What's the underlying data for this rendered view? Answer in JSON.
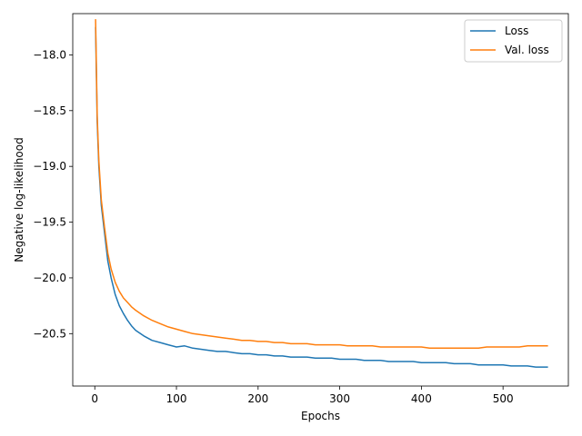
{
  "chart_data": {
    "type": "line",
    "title": "",
    "xlabel": "Epochs",
    "ylabel": "Negative log-likelihood",
    "xlim": [
      -27,
      580
    ],
    "ylim": [
      -20.97,
      -17.63
    ],
    "xticks": [
      0,
      100,
      200,
      300,
      400,
      500
    ],
    "yticks": [
      -18.0,
      -18.5,
      -19.0,
      -19.5,
      -20.0,
      -20.5
    ],
    "ytick_labels": [
      "−18.0",
      "−18.5",
      "−19.0",
      "−19.5",
      "−20.0",
      "−20.5"
    ],
    "grid": false,
    "legend_position": "top-right",
    "series": [
      {
        "name": "Loss",
        "color": "#1f77b4",
        "x": [
          1,
          3,
          5,
          8,
          12,
          16,
          20,
          25,
          30,
          35,
          40,
          45,
          50,
          60,
          70,
          80,
          90,
          100,
          110,
          120,
          130,
          140,
          150,
          160,
          170,
          180,
          190,
          200,
          210,
          220,
          230,
          240,
          250,
          260,
          270,
          280,
          290,
          300,
          310,
          320,
          330,
          340,
          350,
          360,
          370,
          380,
          390,
          400,
          410,
          420,
          430,
          440,
          450,
          460,
          470,
          480,
          490,
          500,
          510,
          520,
          530,
          540,
          550,
          555
        ],
        "values": [
          -17.75,
          -18.6,
          -19.0,
          -19.35,
          -19.6,
          -19.85,
          -20.0,
          -20.15,
          -20.25,
          -20.32,
          -20.38,
          -20.43,
          -20.47,
          -20.52,
          -20.56,
          -20.58,
          -20.6,
          -20.62,
          -20.61,
          -20.63,
          -20.64,
          -20.65,
          -20.66,
          -20.66,
          -20.67,
          -20.68,
          -20.68,
          -20.69,
          -20.69,
          -20.7,
          -20.7,
          -20.71,
          -20.71,
          -20.71,
          -20.72,
          -20.72,
          -20.72,
          -20.73,
          -20.73,
          -20.73,
          -20.74,
          -20.74,
          -20.74,
          -20.75,
          -20.75,
          -20.75,
          -20.75,
          -20.76,
          -20.76,
          -20.76,
          -20.76,
          -20.77,
          -20.77,
          -20.77,
          -20.78,
          -20.78,
          -20.78,
          -20.78,
          -20.79,
          -20.79,
          -20.79,
          -20.8,
          -20.8,
          -20.8
        ]
      },
      {
        "name": "Val. loss",
        "color": "#ff7f0e",
        "x": [
          1,
          3,
          5,
          8,
          12,
          16,
          20,
          25,
          30,
          35,
          40,
          45,
          50,
          60,
          70,
          80,
          90,
          100,
          110,
          120,
          130,
          140,
          150,
          160,
          170,
          180,
          190,
          200,
          210,
          220,
          230,
          240,
          250,
          260,
          270,
          280,
          290,
          300,
          310,
          320,
          330,
          340,
          350,
          360,
          370,
          380,
          390,
          400,
          410,
          420,
          430,
          440,
          450,
          460,
          470,
          480,
          490,
          500,
          510,
          520,
          530,
          540,
          550,
          555
        ],
        "values": [
          -17.68,
          -18.55,
          -18.95,
          -19.3,
          -19.55,
          -19.78,
          -19.92,
          -20.04,
          -20.12,
          -20.18,
          -20.22,
          -20.26,
          -20.29,
          -20.34,
          -20.38,
          -20.41,
          -20.44,
          -20.46,
          -20.48,
          -20.5,
          -20.51,
          -20.52,
          -20.53,
          -20.54,
          -20.55,
          -20.56,
          -20.56,
          -20.57,
          -20.57,
          -20.58,
          -20.58,
          -20.59,
          -20.59,
          -20.59,
          -20.6,
          -20.6,
          -20.6,
          -20.6,
          -20.61,
          -20.61,
          -20.61,
          -20.61,
          -20.62,
          -20.62,
          -20.62,
          -20.62,
          -20.62,
          -20.62,
          -20.63,
          -20.63,
          -20.63,
          -20.63,
          -20.63,
          -20.63,
          -20.63,
          -20.62,
          -20.62,
          -20.62,
          -20.62,
          -20.62,
          -20.61,
          -20.61,
          -20.61,
          -20.61
        ]
      }
    ]
  }
}
